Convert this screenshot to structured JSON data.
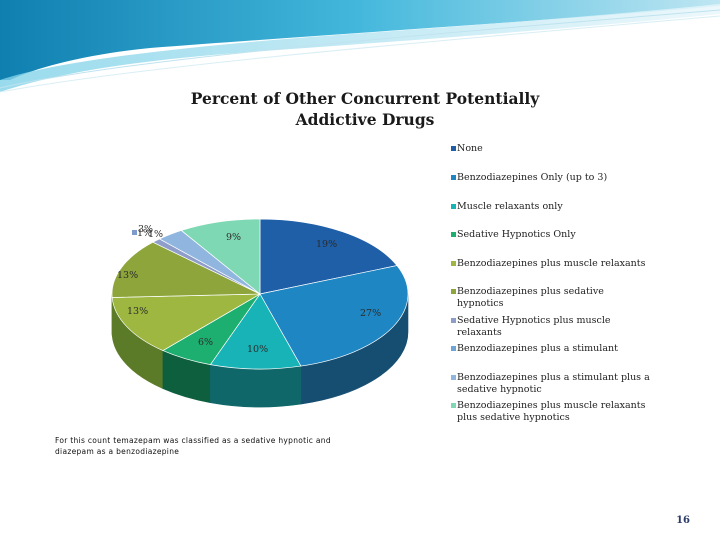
{
  "chart_data": {
    "type": "pie",
    "title": "Percent of Other Concurrent Potentially Addictive Drugs",
    "categories": [
      "None",
      "Benzodiazepines Only (up to 3)",
      "Muscle relaxants only",
      "Sedative Hypnotics Only",
      "Benzodiazepines plus muscle relaxants",
      "Benzodiazepines plus sedative hypnotics",
      "Sedative Hypnotics plus muscle relaxants",
      "Benzodiazepines plus a stimulant",
      "Benzodiazepines plus a stimulant plus a sedative hypnotic",
      "Benzodiazepines plus muscle relaxants plus sedative hypnotics"
    ],
    "values": [
      19,
      27,
      10,
      6,
      13,
      13,
      1,
      0,
      3,
      9
    ],
    "data_labels": [
      "19%",
      "27%",
      "10%",
      "6%",
      "13%",
      "13%",
      "1%",
      "",
      "3%",
      "9%"
    ],
    "extra_labels": [
      "1%"
    ],
    "colors": [
      "#1f5fa7",
      "#1d86c3",
      "#17b3b6",
      "#1daf70",
      "#9db740",
      "#8da53a",
      "#8e9ec9",
      "#6ea6d8",
      "#90b6e0",
      "#7fd8b4"
    ],
    "side_colors": [
      "#173f6e",
      "#164e72",
      "#10676a",
      "#0e5f3e",
      "#5c7b28",
      "#3c5424",
      "#5c668a",
      "#476c8e",
      "#5d7a99",
      "#4f8f75"
    ],
    "legend_position": "right",
    "style": "3d-pie"
  },
  "footnote": "For this count temazepam was classified as a sedative hypnotic and diazepam as a benzodiazepine",
  "page_number": "16",
  "colors": {
    "title": "#1a1a1a",
    "background_swoosh": "#2fa7cf"
  }
}
